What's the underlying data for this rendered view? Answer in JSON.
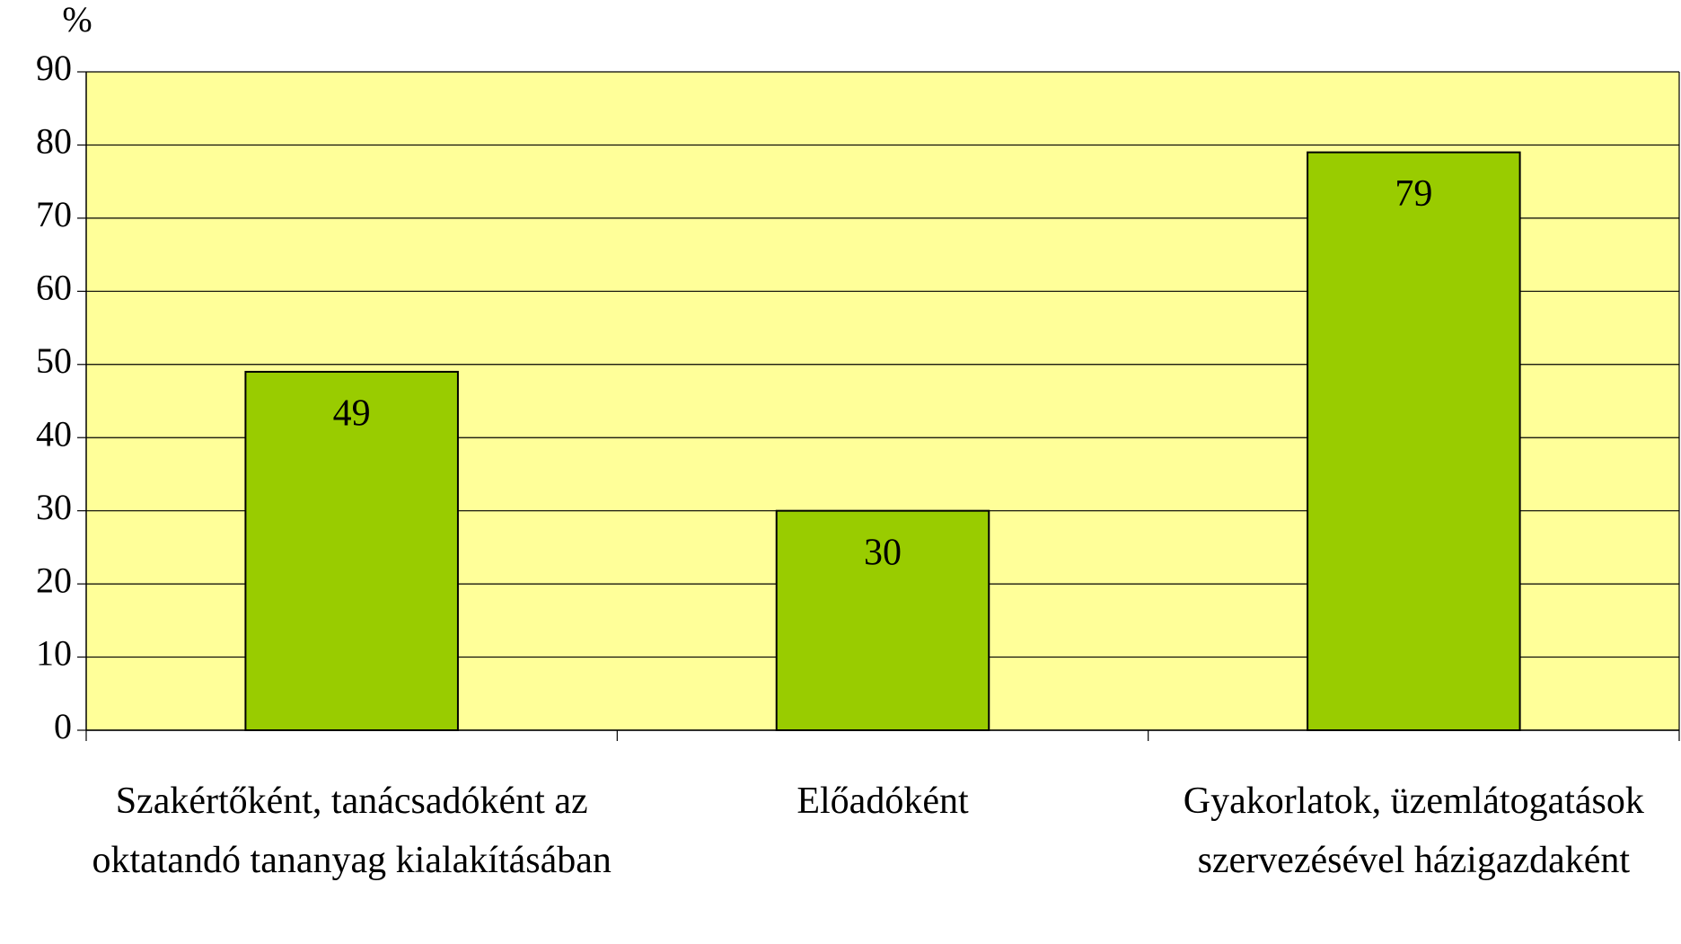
{
  "chart_data": {
    "type": "bar",
    "y_label": "%",
    "categories": [
      "Szakértőként, tanácsadóként az oktatandó tananyag kialakításában",
      "Előadóként",
      "Gyakorlatok, üzemlátogatások szervezésével házigazdaként"
    ],
    "values": [
      49,
      30,
      79
    ],
    "color": "#99cc00",
    "plot_background": "#ffff99",
    "ylim": [
      0,
      90
    ],
    "yticks": [
      0,
      10,
      20,
      30,
      40,
      50,
      60,
      70,
      80,
      90
    ],
    "grid": true
  }
}
